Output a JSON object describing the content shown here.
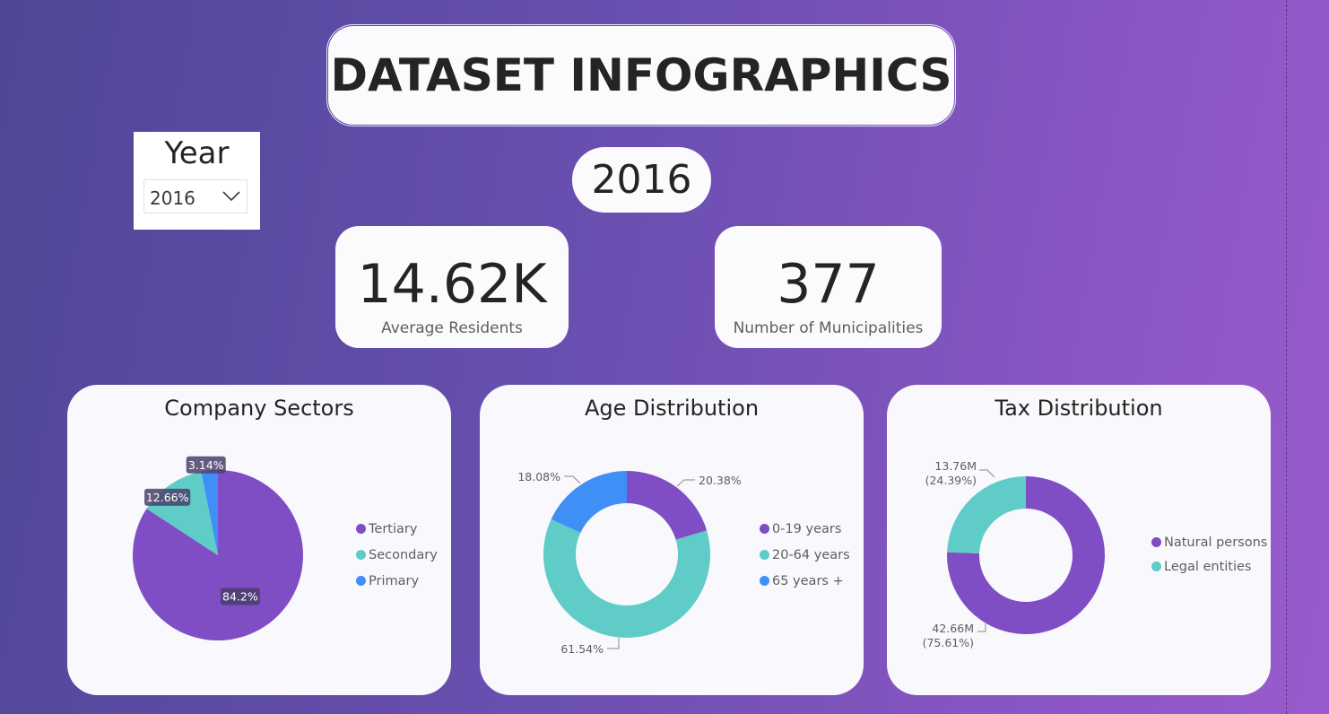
{
  "title": "DATASET INFOGRAPHICS",
  "slicer": {
    "label": "Year",
    "selected": "2016"
  },
  "year_card": "2016",
  "kpis": {
    "residents": {
      "value": "14.62K",
      "caption": "Average Residents"
    },
    "municipalities": {
      "value": "377",
      "caption": "Number of Municipalities"
    }
  },
  "colors": {
    "purple": "#7f4ec5",
    "teal": "#5fccc8",
    "blue": "#3f8ff7"
  },
  "chart_data": [
    {
      "type": "pie",
      "title": "Company Sectors",
      "legend_position": "right",
      "categories": [
        "Tertiary",
        "Secondary",
        "Primary"
      ],
      "values": [
        84.2,
        12.66,
        3.14
      ],
      "labels": [
        "84.2%",
        "12.66%",
        "3.14%"
      ],
      "colors": [
        "#7f4ec5",
        "#5fccc8",
        "#3f8ff7"
      ]
    },
    {
      "type": "donut",
      "title": "Age Distribution",
      "legend_position": "right",
      "categories": [
        "0-19 years",
        "20-64 years",
        "65 years +"
      ],
      "values": [
        20.38,
        61.54,
        18.08
      ],
      "labels": [
        "20.38%",
        "61.54%",
        "18.08%"
      ],
      "colors": [
        "#7f4ec5",
        "#5fccc8",
        "#3f8ff7"
      ]
    },
    {
      "type": "donut",
      "title": "Tax Distribution",
      "legend_position": "right",
      "categories": [
        "Natural persons",
        "Legal entities"
      ],
      "values": [
        42.66,
        13.76
      ],
      "labels": [
        [
          "42.66M",
          "(75.61%)"
        ],
        [
          "13.76M",
          "(24.39%)"
        ]
      ],
      "colors": [
        "#7f4ec5",
        "#5fccc8"
      ]
    }
  ]
}
